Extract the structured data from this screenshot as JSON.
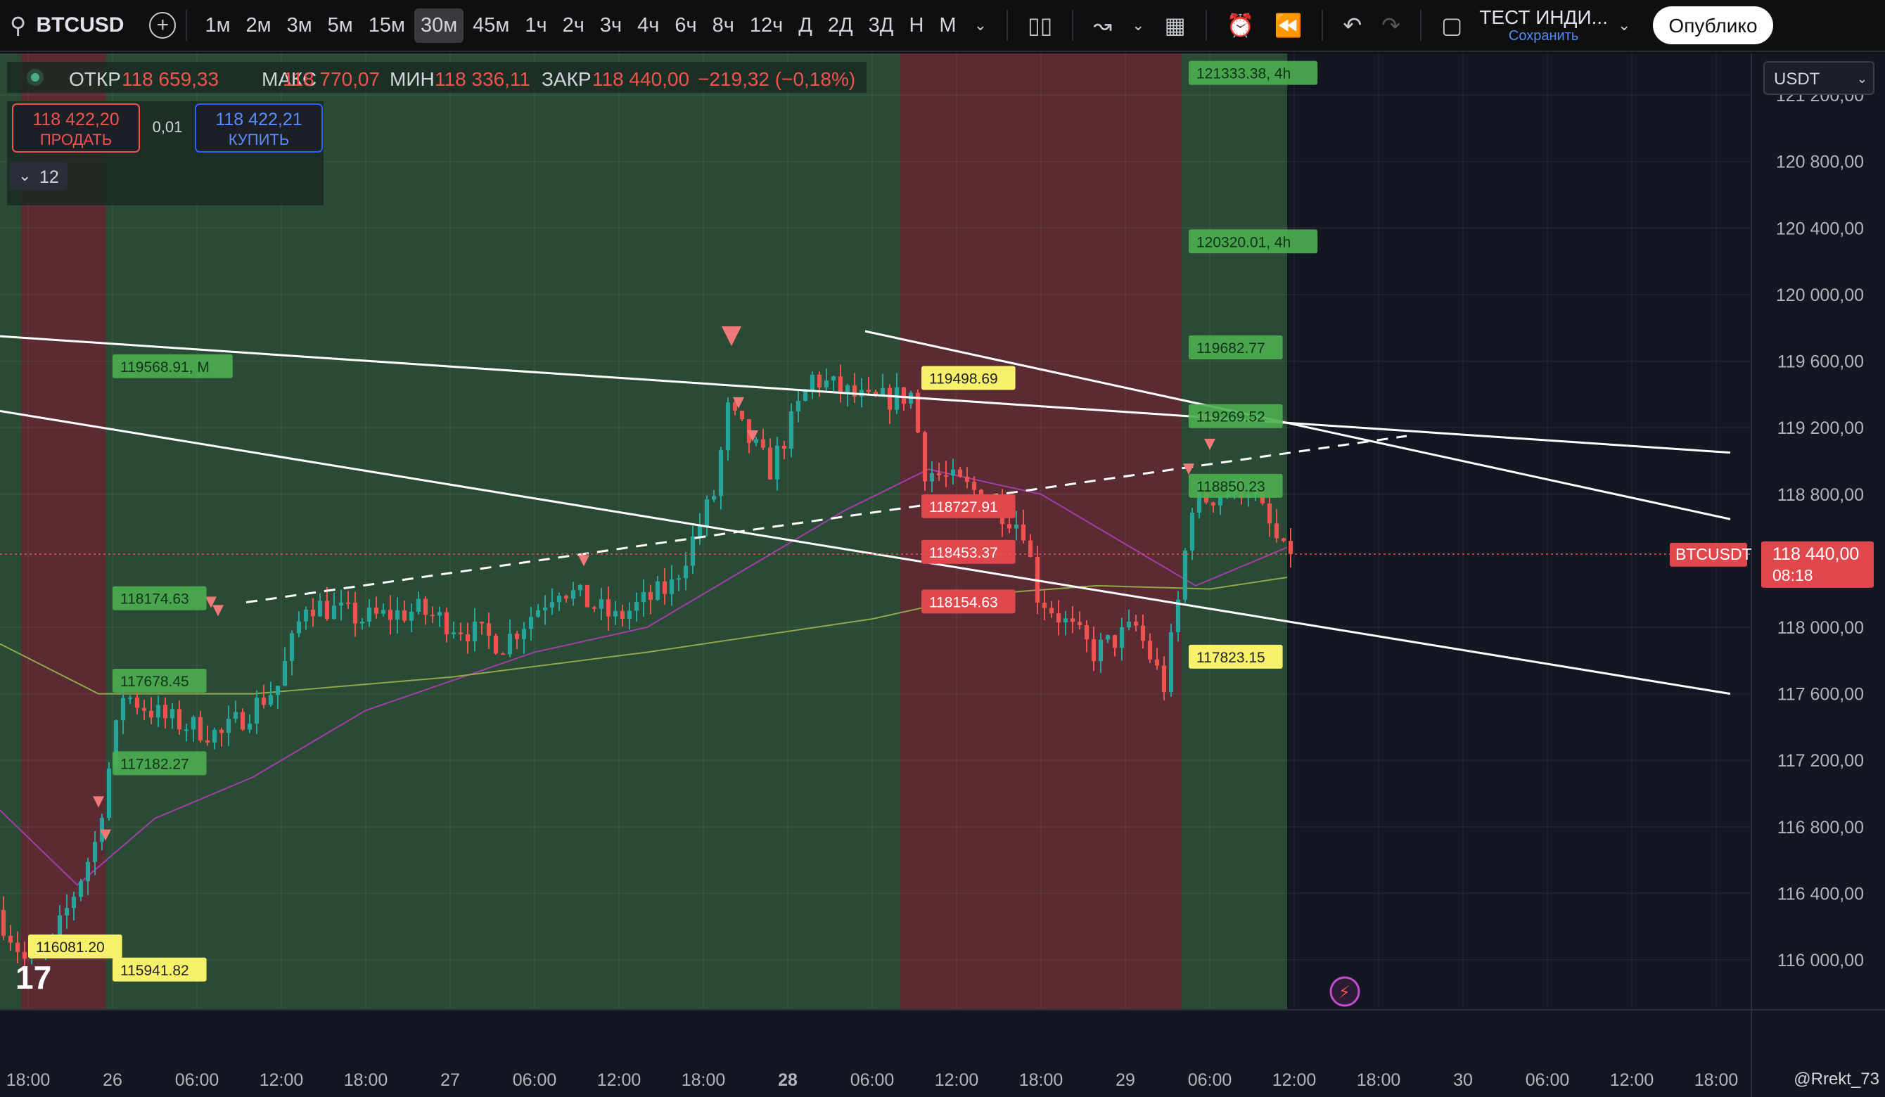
{
  "toolbar": {
    "symbol": "BTCUSD",
    "timeframes": [
      "1м",
      "2м",
      "3м",
      "5м",
      "15м",
      "30м",
      "45м",
      "1ч",
      "2ч",
      "3ч",
      "4ч",
      "6ч",
      "8ч",
      "12ч",
      "Д",
      "2Д",
      "3Д",
      "Н",
      "М"
    ],
    "active_timeframe": "30м",
    "layout_name": "ТЕСТ ИНДИ...",
    "save_label": "Сохранить",
    "publish_label": "Опублико",
    "icons": [
      "search-icon",
      "add-symbol-icon",
      "chevron-down-icon",
      "candles-icon",
      "indicators-icon",
      "chevron-down-icon",
      "layout-icon",
      "alert-icon",
      "replay-icon",
      "undo-icon",
      "redo-icon",
      "fullscreen-icon"
    ]
  },
  "legend": {
    "open_label": "ОТКР",
    "open": "118 659,33",
    "high_label": "МАКС",
    "high": "118 770,07",
    "low_label": "МИН",
    "low": "118 336,11",
    "close_label": "ЗАКР",
    "close": "118 440,00",
    "change": "−219,32 (−0,18%)",
    "sell_price": "118 422,20",
    "sell_label": "ПРОДАТЬ",
    "spread": "0,01",
    "buy_price": "118 422,21",
    "buy_label": "КУПИТЬ",
    "indicators_count": "12"
  },
  "currency": "USDT",
  "last_price": {
    "label": "BTCUSDT",
    "value": "118 440,00",
    "countdown": "08:18"
  },
  "watermark": "@Rrekt_73",
  "colors": {
    "up": "#26a69a",
    "down": "#ef5350",
    "bull_zone": "#2a4a35",
    "bear_zone": "#5a2b33",
    "ma_fast": "#a33da8",
    "ma_slow": "#8fa84a",
    "yellow_label": "#f7f06b",
    "green_label": "#4caf50",
    "red_label": "#e0474c"
  },
  "chart_data": {
    "type": "candlestick",
    "ylim": [
      115700,
      121450
    ],
    "y_ticks": [
      {
        "v": 121200,
        "t": "121 200,00"
      },
      {
        "v": 120800,
        "t": "120 800,00"
      },
      {
        "v": 120400,
        "t": "120 400,00"
      },
      {
        "v": 120000,
        "t": "120 000,00"
      },
      {
        "v": 119600,
        "t": "119 600,00"
      },
      {
        "v": 119200,
        "t": "119 200,00"
      },
      {
        "v": 118800,
        "t": "118 800,00"
      },
      {
        "v": 118000,
        "t": "118 000,00"
      },
      {
        "v": 117600,
        "t": "117 600,00"
      },
      {
        "v": 117200,
        "t": "117 200,00"
      },
      {
        "v": 116800,
        "t": "116 800,00"
      },
      {
        "v": 116400,
        "t": "116 400,00"
      },
      {
        "v": 116000,
        "t": "116 000,00"
      }
    ],
    "x_start": "2025-07-25 16:00",
    "x_end": "2025-07-30 20:30",
    "bar_minutes": 30,
    "x_ticks": [
      {
        "x": "2025-07-25 18:00",
        "t": "18:00"
      },
      {
        "x": "2025-07-26 00:00",
        "t": "26"
      },
      {
        "x": "2025-07-26 06:00",
        "t": "06:00"
      },
      {
        "x": "2025-07-26 12:00",
        "t": "12:00"
      },
      {
        "x": "2025-07-26 18:00",
        "t": "18:00"
      },
      {
        "x": "2025-07-27 00:00",
        "t": "27"
      },
      {
        "x": "2025-07-27 06:00",
        "t": "06:00"
      },
      {
        "x": "2025-07-27 12:00",
        "t": "12:00"
      },
      {
        "x": "2025-07-27 18:00",
        "t": "18:00"
      },
      {
        "x": "2025-07-28 00:00",
        "t": "28",
        "bold": true
      },
      {
        "x": "2025-07-28 06:00",
        "t": "06:00"
      },
      {
        "x": "2025-07-28 12:00",
        "t": "12:00"
      },
      {
        "x": "2025-07-28 18:00",
        "t": "18:00"
      },
      {
        "x": "2025-07-29 00:00",
        "t": "29"
      },
      {
        "x": "2025-07-29 06:00",
        "t": "06:00"
      },
      {
        "x": "2025-07-29 12:00",
        "t": "12:00"
      },
      {
        "x": "2025-07-29 18:00",
        "t": "18:00"
      },
      {
        "x": "2025-07-30 00:00",
        "t": "30"
      },
      {
        "x": "2025-07-30 06:00",
        "t": "06:00"
      },
      {
        "x": "2025-07-30 12:00",
        "t": "12:00"
      },
      {
        "x": "2025-07-30 18:00",
        "t": "18:00"
      }
    ],
    "zones": [
      {
        "from": "2025-07-25 16:00",
        "to": "2025-07-25 17:30",
        "kind": "bull"
      },
      {
        "from": "2025-07-25 17:30",
        "to": "2025-07-25 23:30",
        "kind": "bear"
      },
      {
        "from": "2025-07-25 23:30",
        "to": "2025-07-28 08:00",
        "kind": "bull"
      },
      {
        "from": "2025-07-28 08:00",
        "to": "2025-07-29 04:00",
        "kind": "bear"
      },
      {
        "from": "2025-07-29 04:00",
        "to": "2025-07-29 11:30",
        "kind": "bull"
      }
    ],
    "anchors": [
      {
        "x": "2025-07-25 16:00",
        "y": 116300
      },
      {
        "x": "2025-07-25 18:00",
        "y": 116000
      },
      {
        "x": "2025-07-25 20:00",
        "y": 116100
      },
      {
        "x": "2025-07-25 23:00",
        "y": 116700
      },
      {
        "x": "2025-07-26 01:00",
        "y": 117600
      },
      {
        "x": "2025-07-26 04:00",
        "y": 117450
      },
      {
        "x": "2025-07-26 08:00",
        "y": 117350
      },
      {
        "x": "2025-07-26 12:00",
        "y": 117650
      },
      {
        "x": "2025-07-26 14:00",
        "y": 118150
      },
      {
        "x": "2025-07-26 18:00",
        "y": 118050
      },
      {
        "x": "2025-07-26 22:00",
        "y": 118100
      },
      {
        "x": "2025-07-27 04:00",
        "y": 117900
      },
      {
        "x": "2025-07-27 08:00",
        "y": 118250
      },
      {
        "x": "2025-07-27 12:00",
        "y": 118050
      },
      {
        "x": "2025-07-27 16:00",
        "y": 118250
      },
      {
        "x": "2025-07-27 19:00",
        "y": 118800
      },
      {
        "x": "2025-07-27 20:00",
        "y": 119300
      },
      {
        "x": "2025-07-27 23:00",
        "y": 118950
      },
      {
        "x": "2025-07-28 02:00",
        "y": 119500
      },
      {
        "x": "2025-07-28 06:00",
        "y": 119350
      },
      {
        "x": "2025-07-28 09:00",
        "y": 119400
      },
      {
        "x": "2025-07-28 10:00",
        "y": 118950
      },
      {
        "x": "2025-07-28 14:00",
        "y": 118800
      },
      {
        "x": "2025-07-28 17:00",
        "y": 118600
      },
      {
        "x": "2025-07-28 18:00",
        "y": 118200
      },
      {
        "x": "2025-07-28 22:00",
        "y": 117850
      },
      {
        "x": "2025-07-29 01:00",
        "y": 118000
      },
      {
        "x": "2025-07-29 03:00",
        "y": 117650
      },
      {
        "x": "2025-07-29 04:00",
        "y": 118150
      },
      {
        "x": "2025-07-29 05:00",
        "y": 118750
      },
      {
        "x": "2025-07-29 09:00",
        "y": 118850
      },
      {
        "x": "2025-07-29 11:30",
        "y": 118440
      }
    ],
    "last_close": 118440,
    "ma_fast": [
      {
        "x": "2025-07-25 16:00",
        "y": 116900
      },
      {
        "x": "2025-07-25 21:30",
        "y": 116450
      },
      {
        "x": "2025-07-26 03:00",
        "y": 116850
      },
      {
        "x": "2025-07-26 10:00",
        "y": 117100
      },
      {
        "x": "2025-07-26 18:00",
        "y": 117500
      },
      {
        "x": "2025-07-27 06:00",
        "y": 117850
      },
      {
        "x": "2025-07-27 14:00",
        "y": 118000
      },
      {
        "x": "2025-07-27 20:00",
        "y": 118300
      },
      {
        "x": "2025-07-28 04:00",
        "y": 118700
      },
      {
        "x": "2025-07-28 10:00",
        "y": 118950
      },
      {
        "x": "2025-07-28 18:00",
        "y": 118800
      },
      {
        "x": "2025-07-29 00:00",
        "y": 118500
      },
      {
        "x": "2025-07-29 05:00",
        "y": 118250
      },
      {
        "x": "2025-07-29 11:30",
        "y": 118480
      }
    ],
    "ma_slow": [
      {
        "x": "2025-07-25 16:00",
        "y": 117900
      },
      {
        "x": "2025-07-25 23:00",
        "y": 117600
      },
      {
        "x": "2025-07-26 10:00",
        "y": 117600
      },
      {
        "x": "2025-07-27 00:00",
        "y": 117700
      },
      {
        "x": "2025-07-27 14:00",
        "y": 117850
      },
      {
        "x": "2025-07-28 06:00",
        "y": 118050
      },
      {
        "x": "2025-07-28 14:00",
        "y": 118200
      },
      {
        "x": "2025-07-28 22:00",
        "y": 118250
      },
      {
        "x": "2025-07-29 06:00",
        "y": 118230
      },
      {
        "x": "2025-07-29 11:30",
        "y": 118300
      }
    ],
    "trendlines": [
      {
        "from": {
          "x": "2025-07-25 16:00",
          "y": 119750
        },
        "to": {
          "x": "2025-07-30 19:00",
          "y": 119050
        },
        "dash": false
      },
      {
        "from": {
          "x": "2025-07-25 16:00",
          "y": 119300
        },
        "to": {
          "x": "2025-07-30 19:00",
          "y": 117600
        },
        "dash": false
      },
      {
        "from": {
          "x": "2025-07-28 05:30",
          "y": 119780
        },
        "to": {
          "x": "2025-07-30 19:00",
          "y": 118650
        },
        "dash": false
      },
      {
        "from": {
          "x": "2025-07-26 09:30",
          "y": 118150
        },
        "to": {
          "x": "2025-07-29 20:00",
          "y": 119150
        },
        "dash": true
      }
    ],
    "level_labels": [
      {
        "x": "2025-07-26 00:00",
        "y": 119568.91,
        "text": "119568.91, M",
        "style": "green"
      },
      {
        "x": "2025-07-26 00:00",
        "y": 118174.63,
        "text": "118174.63",
        "style": "green"
      },
      {
        "x": "2025-07-26 00:00",
        "y": 117678.45,
        "text": "117678.45",
        "style": "green"
      },
      {
        "x": "2025-07-26 00:00",
        "y": 117182.27,
        "text": "117182.27",
        "style": "green"
      },
      {
        "x": "2025-07-25 18:00",
        "y": 116081.2,
        "text": "116081.20",
        "style": "yellow"
      },
      {
        "x": "2025-07-26 00:00",
        "y": 115941.82,
        "text": "115941.82",
        "style": "yellow"
      },
      {
        "x": "2025-07-28 09:30",
        "y": 119498.69,
        "text": "119498.69",
        "style": "yellow"
      },
      {
        "x": "2025-07-28 09:30",
        "y": 118727.91,
        "text": "118727.91",
        "style": "red"
      },
      {
        "x": "2025-07-28 09:30",
        "y": 118453.37,
        "text": "118453.37",
        "style": "red"
      },
      {
        "x": "2025-07-28 09:30",
        "y": 118154.63,
        "text": "118154.63",
        "style": "red"
      },
      {
        "x": "2025-07-29 04:30",
        "y": 121333.38,
        "text": "121333.38, 4h",
        "style": "green"
      },
      {
        "x": "2025-07-29 04:30",
        "y": 120320.01,
        "text": "120320.01, 4h",
        "style": "green"
      },
      {
        "x": "2025-07-29 04:30",
        "y": 119682.77,
        "text": "119682.77",
        "style": "green"
      },
      {
        "x": "2025-07-29 04:30",
        "y": 119269.52,
        "text": "119269.52",
        "style": "green"
      },
      {
        "x": "2025-07-29 04:30",
        "y": 118850.23,
        "text": "118850.23",
        "style": "green"
      },
      {
        "x": "2025-07-29 04:30",
        "y": 117823.15,
        "text": "117823.15",
        "style": "yellow"
      }
    ],
    "markers": [
      {
        "x": "2025-07-25 23:00",
        "y": 116950
      },
      {
        "x": "2025-07-25 23:30",
        "y": 116750
      },
      {
        "x": "2025-07-26 07:00",
        "y": 118150
      },
      {
        "x": "2025-07-26 07:30",
        "y": 118100
      },
      {
        "x": "2025-07-27 09:30",
        "y": 118400
      },
      {
        "x": "2025-07-27 20:00",
        "y": 119750,
        "big": true
      },
      {
        "x": "2025-07-27 20:30",
        "y": 119350
      },
      {
        "x": "2025-07-27 21:30",
        "y": 119150
      },
      {
        "x": "2025-07-29 04:30",
        "y": 118950
      },
      {
        "x": "2025-07-29 05:30",
        "y": 119250
      },
      {
        "x": "2025-07-29 06:00",
        "y": 119100
      }
    ]
  }
}
